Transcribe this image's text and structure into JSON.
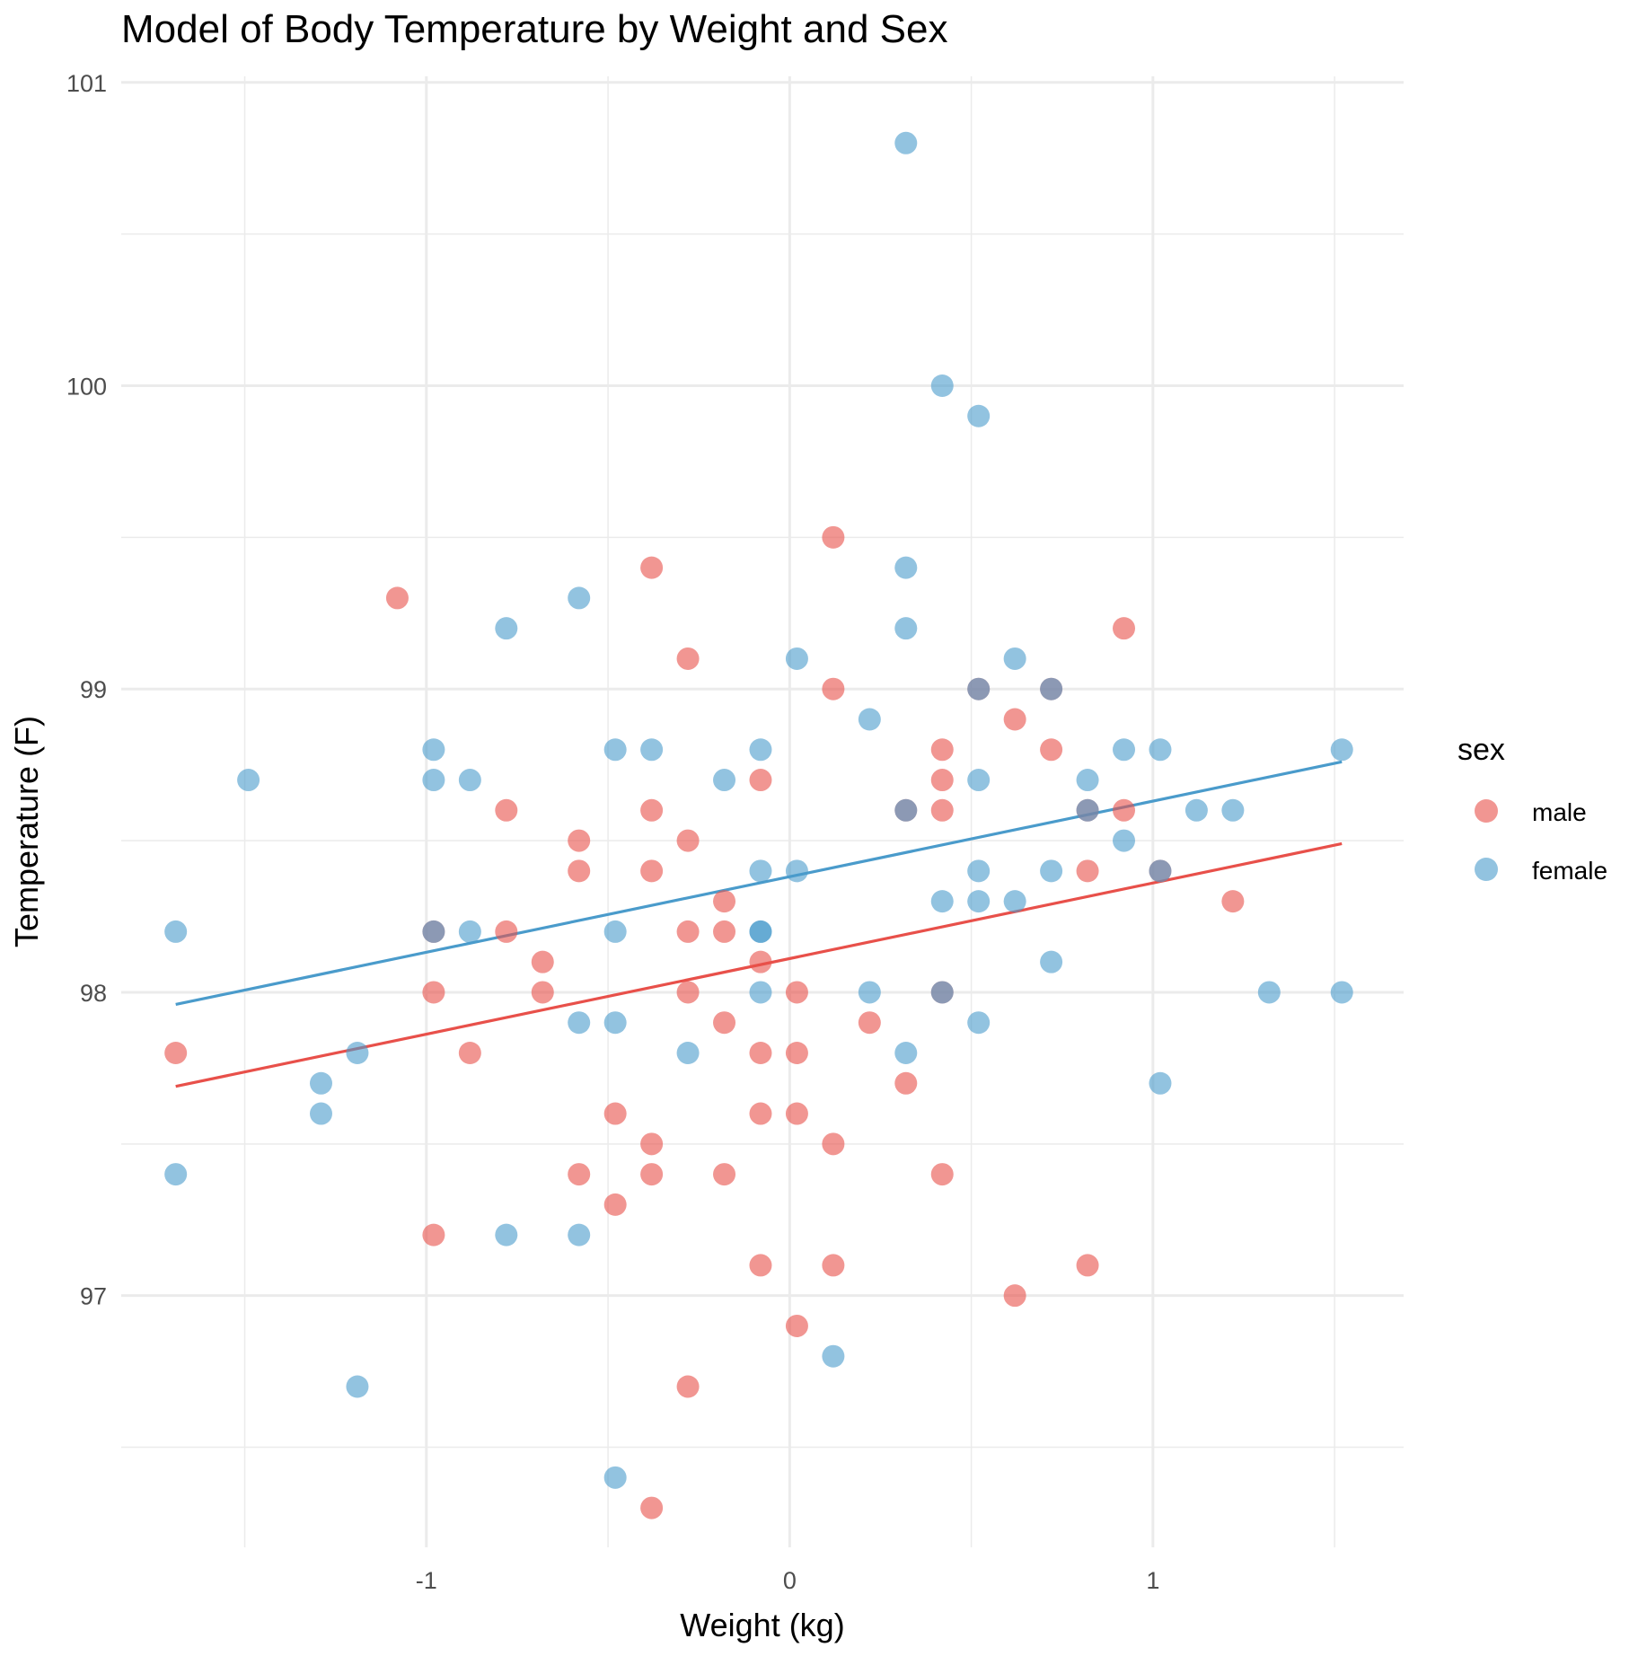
{
  "chart_data": {
    "type": "scatter",
    "title": "Model of Body Temperature by Weight and Sex",
    "xlabel": "Weight (kg)",
    "ylabel": "Temperature (F)",
    "xlim": [
      -1.84,
      1.69
    ],
    "ylim": [
      96.17,
      101.02
    ],
    "x_ticks": [
      -1,
      0,
      1
    ],
    "x_tick_labels": [
      "-1",
      "0",
      "1"
    ],
    "y_ticks": [
      97,
      98,
      99,
      100,
      101
    ],
    "y_tick_labels": [
      "97",
      "98",
      "99",
      "100",
      "101"
    ],
    "grid": true,
    "legend": {
      "title": "sex",
      "position": "right",
      "entries": [
        "male",
        "female"
      ]
    },
    "colors": {
      "male": "#E8504A",
      "female": "#4A9BCB",
      "grid": "#ebebeb"
    },
    "series": [
      {
        "name": "male",
        "color": "#E8504A",
        "points": [
          [
            -1.69,
            97.8
          ],
          [
            -1.08,
            99.3
          ],
          [
            -0.98,
            98.2
          ],
          [
            -0.98,
            98.0
          ],
          [
            -0.98,
            97.2
          ],
          [
            -0.88,
            97.8
          ],
          [
            -0.78,
            98.6
          ],
          [
            -0.78,
            98.2
          ],
          [
            -0.68,
            98.1
          ],
          [
            -0.68,
            98.0
          ],
          [
            -0.58,
            98.5
          ],
          [
            -0.58,
            98.4
          ],
          [
            -0.58,
            97.4
          ],
          [
            -0.48,
            97.6
          ],
          [
            -0.48,
            97.3
          ],
          [
            -0.38,
            99.4
          ],
          [
            -0.38,
            98.6
          ],
          [
            -0.38,
            98.4
          ],
          [
            -0.38,
            97.5
          ],
          [
            -0.38,
            97.4
          ],
          [
            -0.38,
            96.3
          ],
          [
            -0.28,
            99.1
          ],
          [
            -0.28,
            98.5
          ],
          [
            -0.28,
            98.2
          ],
          [
            -0.28,
            98.0
          ],
          [
            -0.28,
            96.7
          ],
          [
            -0.18,
            98.3
          ],
          [
            -0.18,
            98.2
          ],
          [
            -0.18,
            97.9
          ],
          [
            -0.18,
            97.4
          ],
          [
            -0.08,
            98.7
          ],
          [
            -0.08,
            98.1
          ],
          [
            -0.08,
            97.8
          ],
          [
            -0.08,
            97.6
          ],
          [
            -0.08,
            97.1
          ],
          [
            0.02,
            98.0
          ],
          [
            0.02,
            97.8
          ],
          [
            0.02,
            97.6
          ],
          [
            0.02,
            96.9
          ],
          [
            0.12,
            99.5
          ],
          [
            0.12,
            99.0
          ],
          [
            0.12,
            97.5
          ],
          [
            0.12,
            97.1
          ],
          [
            0.22,
            97.9
          ],
          [
            0.32,
            98.6
          ],
          [
            0.32,
            97.7
          ],
          [
            0.42,
            98.8
          ],
          [
            0.42,
            98.7
          ],
          [
            0.42,
            98.6
          ],
          [
            0.42,
            98.0
          ],
          [
            0.42,
            97.4
          ],
          [
            0.52,
            99.0
          ],
          [
            0.62,
            98.9
          ],
          [
            0.62,
            97.0
          ],
          [
            0.72,
            99.0
          ],
          [
            0.72,
            98.8
          ],
          [
            0.82,
            98.6
          ],
          [
            0.82,
            98.4
          ],
          [
            0.82,
            97.1
          ],
          [
            0.92,
            99.2
          ],
          [
            0.92,
            98.6
          ],
          [
            1.02,
            98.4
          ],
          [
            1.22,
            98.3
          ]
        ],
        "fit_line": {
          "x": [
            -1.69,
            1.52
          ],
          "y": [
            97.69,
            98.49
          ]
        }
      },
      {
        "name": "female",
        "color": "#4A9BCB",
        "points": [
          [
            -1.69,
            98.2
          ],
          [
            -1.69,
            97.4
          ],
          [
            -1.49,
            98.7
          ],
          [
            -1.29,
            97.7
          ],
          [
            -1.29,
            97.6
          ],
          [
            -1.19,
            97.8
          ],
          [
            -1.19,
            96.7
          ],
          [
            -0.98,
            98.8
          ],
          [
            -0.98,
            98.7
          ],
          [
            -0.98,
            98.2
          ],
          [
            -0.88,
            98.7
          ],
          [
            -0.88,
            98.2
          ],
          [
            -0.78,
            99.2
          ],
          [
            -0.78,
            97.2
          ],
          [
            -0.58,
            99.3
          ],
          [
            -0.58,
            97.9
          ],
          [
            -0.58,
            97.2
          ],
          [
            -0.48,
            98.8
          ],
          [
            -0.48,
            98.2
          ],
          [
            -0.48,
            97.9
          ],
          [
            -0.48,
            96.4
          ],
          [
            -0.38,
            98.8
          ],
          [
            -0.28,
            97.8
          ],
          [
            -0.18,
            98.7
          ],
          [
            -0.08,
            98.8
          ],
          [
            -0.08,
            98.4
          ],
          [
            -0.08,
            98.2
          ],
          [
            -0.08,
            98.2
          ],
          [
            -0.08,
            98.0
          ],
          [
            0.02,
            99.1
          ],
          [
            0.02,
            98.4
          ],
          [
            0.12,
            96.8
          ],
          [
            0.22,
            98.9
          ],
          [
            0.22,
            98.0
          ],
          [
            0.32,
            100.8
          ],
          [
            0.32,
            99.4
          ],
          [
            0.32,
            99.2
          ],
          [
            0.32,
            98.6
          ],
          [
            0.32,
            97.8
          ],
          [
            0.42,
            100.0
          ],
          [
            0.42,
            98.3
          ],
          [
            0.42,
            98.0
          ],
          [
            0.52,
            99.9
          ],
          [
            0.52,
            99.0
          ],
          [
            0.52,
            98.7
          ],
          [
            0.52,
            98.4
          ],
          [
            0.52,
            98.3
          ],
          [
            0.52,
            97.9
          ],
          [
            0.62,
            99.1
          ],
          [
            0.62,
            98.3
          ],
          [
            0.72,
            99.0
          ],
          [
            0.72,
            98.4
          ],
          [
            0.72,
            98.1
          ],
          [
            0.82,
            98.7
          ],
          [
            0.82,
            98.6
          ],
          [
            0.92,
            98.8
          ],
          [
            0.92,
            98.5
          ],
          [
            1.02,
            98.8
          ],
          [
            1.02,
            98.4
          ],
          [
            1.02,
            97.7
          ],
          [
            1.12,
            98.6
          ],
          [
            1.22,
            98.6
          ],
          [
            1.32,
            98.0
          ],
          [
            1.52,
            98.8
          ],
          [
            1.52,
            98.0
          ]
        ],
        "fit_line": {
          "x": [
            -1.69,
            1.52
          ],
          "y": [
            97.96,
            98.76
          ]
        }
      }
    ]
  }
}
